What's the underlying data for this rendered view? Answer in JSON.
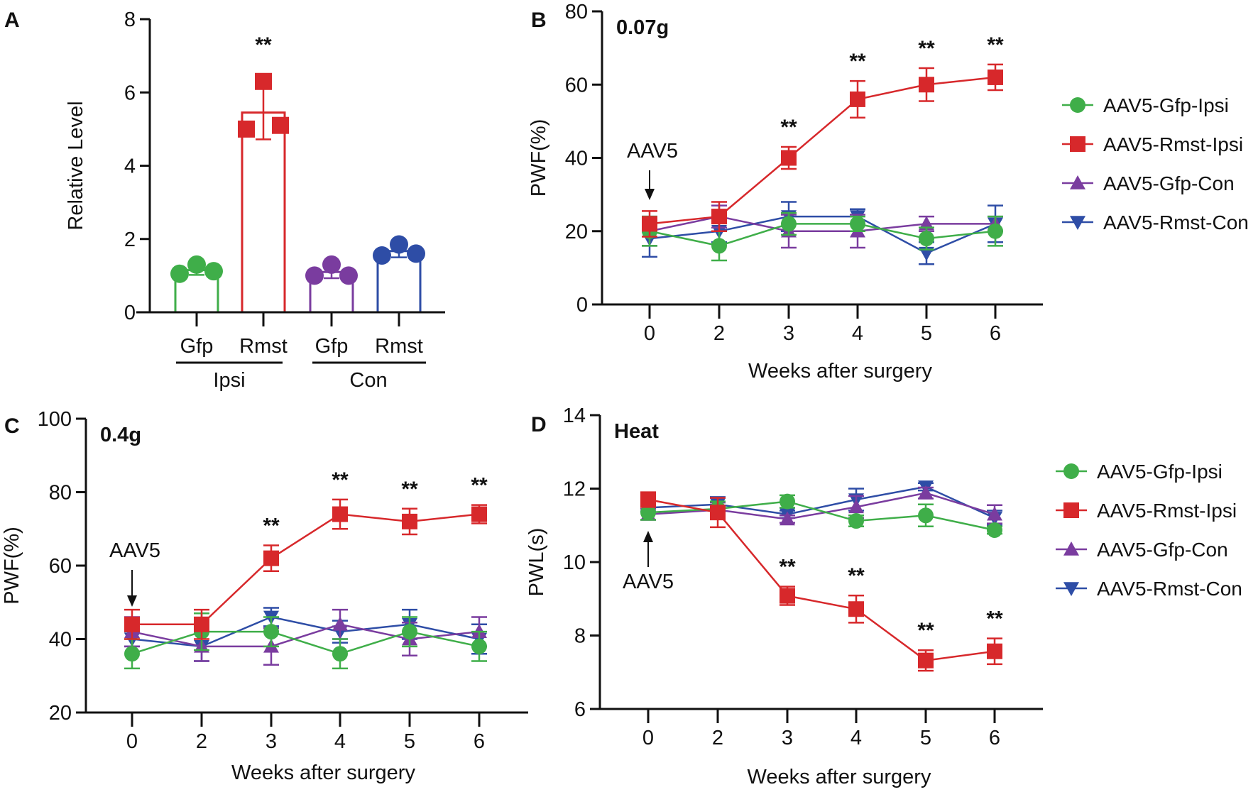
{
  "colors": {
    "Gfp-Ipsi": "#3fae49",
    "Rmst-Ipsi": "#d7282b",
    "Gfp-Con": "#7a3c9f",
    "Rmst-Con": "#2e4da6",
    "axis": "#111111"
  },
  "chart_data": [
    {
      "panel": "A",
      "type": "bar",
      "ylabel": "Relative Level",
      "ylim": [
        0,
        8
      ],
      "yticks": [
        "0",
        "2",
        "4",
        "6",
        "8"
      ],
      "categories": [
        "Gfp",
        "Rmst",
        "Gfp",
        "Rmst"
      ],
      "groups": [
        {
          "label": "Ipsi"
        },
        {
          "label": "Con"
        }
      ],
      "bars": [
        {
          "key": "Gfp-Ipsi",
          "mean": 1.15,
          "sd": 0.13,
          "points": [
            1.05,
            1.3,
            1.12
          ],
          "marker": "circle",
          "sig": ""
        },
        {
          "key": "Rmst-Ipsi",
          "mean": 5.45,
          "sd": 0.73,
          "points": [
            5.0,
            6.3,
            5.1
          ],
          "marker": "square",
          "sig": "**"
        },
        {
          "key": "Gfp-Con",
          "mean": 1.1,
          "sd": 0.17,
          "points": [
            1.0,
            1.3,
            1.0
          ],
          "marker": "circle",
          "sig": ""
        },
        {
          "key": "Rmst-Con",
          "mean": 1.67,
          "sd": 0.17,
          "points": [
            1.55,
            1.85,
            1.6
          ],
          "marker": "circle",
          "sig": ""
        }
      ],
      "grid": false
    },
    {
      "panel": "B",
      "type": "line",
      "condition": "0.07g",
      "xlabel": "Weeks after surgery",
      "ylabel": "PWF(%)",
      "x": [
        "0",
        "2",
        "3",
        "4",
        "5",
        "6"
      ],
      "ylim": [
        0,
        80
      ],
      "yticks": [
        "0",
        "20",
        "40",
        "60",
        "80"
      ],
      "annotation": {
        "text": "AAV5",
        "at_x": "0",
        "arrow": "down"
      },
      "legend": "right",
      "grid": false,
      "series": [
        {
          "name": "AAV5-Gfp-Ipsi",
          "key": "Gfp-Ipsi",
          "marker": "circle",
          "values": [
            20,
            16,
            22,
            22,
            18,
            20
          ],
          "err": [
            4,
            4,
            3,
            2,
            3,
            4
          ]
        },
        {
          "name": "AAV5-Rmst-Ipsi",
          "key": "Rmst-Ipsi",
          "marker": "square",
          "values": [
            22,
            24,
            40,
            56,
            60,
            62
          ],
          "err": [
            3.5,
            4,
            3,
            5,
            4.5,
            3.5
          ],
          "sig": [
            "",
            "",
            "**",
            "**",
            "**",
            "**"
          ]
        },
        {
          "name": "AAV5-Gfp-Con",
          "key": "Gfp-Con",
          "marker": "triangle-up",
          "values": [
            20,
            24,
            20,
            20,
            22,
            22
          ],
          "err": [
            4,
            3,
            4.5,
            4.5,
            2,
            2
          ]
        },
        {
          "name": "AAV5-Rmst-Con",
          "key": "Rmst-Con",
          "marker": "triangle-down",
          "values": [
            18,
            20,
            24,
            24,
            14,
            22
          ],
          "err": [
            5,
            3,
            4,
            2,
            3,
            5
          ]
        }
      ]
    },
    {
      "panel": "C",
      "type": "line",
      "condition": "0.4g",
      "xlabel": "Weeks after surgery",
      "ylabel": "PWF(%)",
      "x": [
        "0",
        "2",
        "3",
        "4",
        "5",
        "6"
      ],
      "ylim": [
        20,
        100
      ],
      "yticks": [
        "20",
        "40",
        "60",
        "80",
        "100"
      ],
      "annotation": {
        "text": "AAV5",
        "at_x": "0",
        "arrow": "down"
      },
      "grid": false,
      "series": [
        {
          "key": "Gfp-Ipsi",
          "marker": "circle",
          "values": [
            36,
            42,
            42,
            36,
            42,
            38
          ],
          "err": [
            4,
            5,
            4,
            4,
            4,
            4
          ]
        },
        {
          "key": "Rmst-Ipsi",
          "marker": "square",
          "values": [
            44,
            44,
            62,
            74,
            72,
            74
          ],
          "err": [
            4,
            4,
            3.5,
            4,
            3.5,
            2.5
          ],
          "sig": [
            "",
            "",
            "**",
            "**",
            "**",
            "**"
          ]
        },
        {
          "key": "Gfp-Con",
          "marker": "triangle-up",
          "values": [
            42,
            38,
            38,
            44,
            40,
            42
          ],
          "err": [
            4,
            4,
            5,
            4,
            4.5,
            4
          ]
        },
        {
          "key": "Rmst-Con",
          "marker": "triangle-down",
          "values": [
            40,
            38,
            46,
            42,
            44,
            40
          ],
          "err": [
            2,
            4,
            2.5,
            3,
            4,
            4
          ]
        }
      ]
    },
    {
      "panel": "D",
      "type": "line",
      "condition": "Heat",
      "xlabel": "Weeks after surgery",
      "ylabel": "PWL(s)",
      "x": [
        "0",
        "2",
        "3",
        "4",
        "5",
        "6"
      ],
      "ylim": [
        6,
        14
      ],
      "yticks": [
        "6",
        "8",
        "10",
        "12",
        "14"
      ],
      "annotation": {
        "text": "AAV5",
        "at_x": "0",
        "arrow": "up"
      },
      "legend": "right",
      "grid": false,
      "series": [
        {
          "name": "AAV5-Gfp-Ipsi",
          "key": "Gfp-Ipsi",
          "marker": "circle",
          "values": [
            11.35,
            11.45,
            11.65,
            11.12,
            11.27,
            10.87
          ],
          "err": [
            0.2,
            0.2,
            0.17,
            0.15,
            0.3,
            0.1
          ]
        },
        {
          "name": "AAV5-Rmst-Ipsi",
          "key": "Rmst-Ipsi",
          "marker": "square",
          "values": [
            11.7,
            11.35,
            9.08,
            8.72,
            7.32,
            7.57
          ],
          "err": [
            0.2,
            0.4,
            0.25,
            0.37,
            0.28,
            0.35
          ],
          "sig": [
            "",
            "",
            "**",
            "**",
            "**",
            "**"
          ]
        },
        {
          "name": "AAV5-Gfp-Con",
          "key": "Gfp-Con",
          "marker": "triangle-up",
          "values": [
            11.3,
            11.42,
            11.17,
            11.5,
            11.88,
            11.3
          ],
          "err": [
            0.15,
            0.2,
            0.1,
            0.3,
            0.15,
            0.25
          ]
        },
        {
          "name": "AAV5-Rmst-Con",
          "key": "Rmst-Con",
          "marker": "triangle-down",
          "values": [
            11.48,
            11.57,
            11.3,
            11.7,
            12.05,
            11.2
          ],
          "err": [
            0.1,
            0.2,
            0.1,
            0.3,
            0.1,
            0.2
          ]
        }
      ]
    }
  ]
}
